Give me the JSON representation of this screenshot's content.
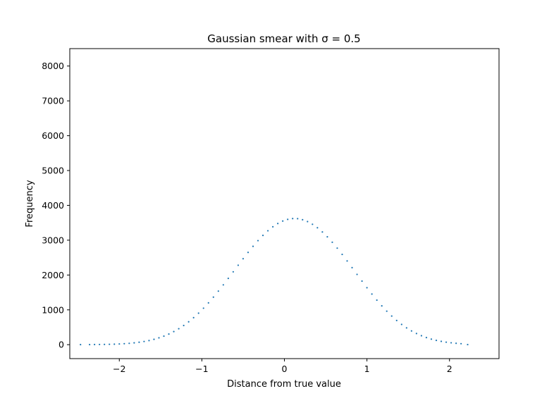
{
  "chart_data": {
    "type": "scatter",
    "title": "Gaussian smear with σ = 0.5",
    "xlabel": "Distance from true value",
    "ylabel": "Frequency",
    "xlim": [
      -2.6,
      2.6
    ],
    "ylim": [
      -400,
      8500
    ],
    "xticks": [
      -2,
      -1,
      0,
      1,
      2
    ],
    "xtick_labels": [
      "−2",
      "−1",
      "0",
      "1",
      "2"
    ],
    "yticks": [
      0,
      1000,
      2000,
      3000,
      4000,
      5000,
      6000,
      7000,
      8000
    ],
    "ytick_labels": [
      "0",
      "1000",
      "2000",
      "3000",
      "4000",
      "5000",
      "6000",
      "7000",
      "8000"
    ],
    "grid": false,
    "series": [
      {
        "color": "#1f77b4",
        "x": [
          -2.47,
          -2.36,
          -2.3,
          -2.24,
          -2.18,
          -2.12,
          -2.06,
          -2.0,
          -1.94,
          -1.88,
          -1.82,
          -1.76,
          -1.7,
          -1.64,
          -1.58,
          -1.52,
          -1.46,
          -1.4,
          -1.34,
          -1.28,
          -1.22,
          -1.16,
          -1.1,
          -1.04,
          -0.98,
          -0.92,
          -0.86,
          -0.8,
          -0.74,
          -0.68,
          -0.62,
          -0.56,
          -0.5,
          -0.44,
          -0.38,
          -0.32,
          -0.26,
          -0.2,
          -0.14,
          -0.08,
          -0.02,
          0.04,
          0.1,
          0.16,
          0.22,
          0.28,
          0.34,
          0.4,
          0.46,
          0.52,
          0.58,
          0.64,
          0.7,
          0.76,
          0.82,
          0.88,
          0.94,
          1.0,
          1.06,
          1.12,
          1.18,
          1.24,
          1.3,
          1.36,
          1.42,
          1.48,
          1.54,
          1.6,
          1.66,
          1.72,
          1.78,
          1.84,
          1.9,
          1.96,
          2.02,
          2.08,
          2.14,
          2.22
        ],
        "y": [
          2,
          3,
          4,
          6,
          8,
          11,
          15,
          21,
          29,
          39,
          52,
          70,
          92,
          119,
          154,
          196,
          246,
          306,
          376,
          458,
          551,
          657,
          775,
          905,
          1048,
          1201,
          1365,
          1538,
          1718,
          1904,
          2092,
          2281,
          2468,
          2650,
          2824,
          2987,
          3137,
          3270,
          3385,
          3479,
          3550,
          3597,
          3620,
          3617,
          3588,
          3534,
          3457,
          3357,
          3236,
          3097,
          2941,
          2772,
          2592,
          2404,
          2212,
          2018,
          1825,
          1636,
          1453,
          1279,
          1114,
          962,
          822,
          695,
          582,
          482,
          395,
          320,
          257,
          204,
          160,
          124,
          95,
          72,
          54,
          40,
          29,
          3
        ]
      }
    ]
  }
}
